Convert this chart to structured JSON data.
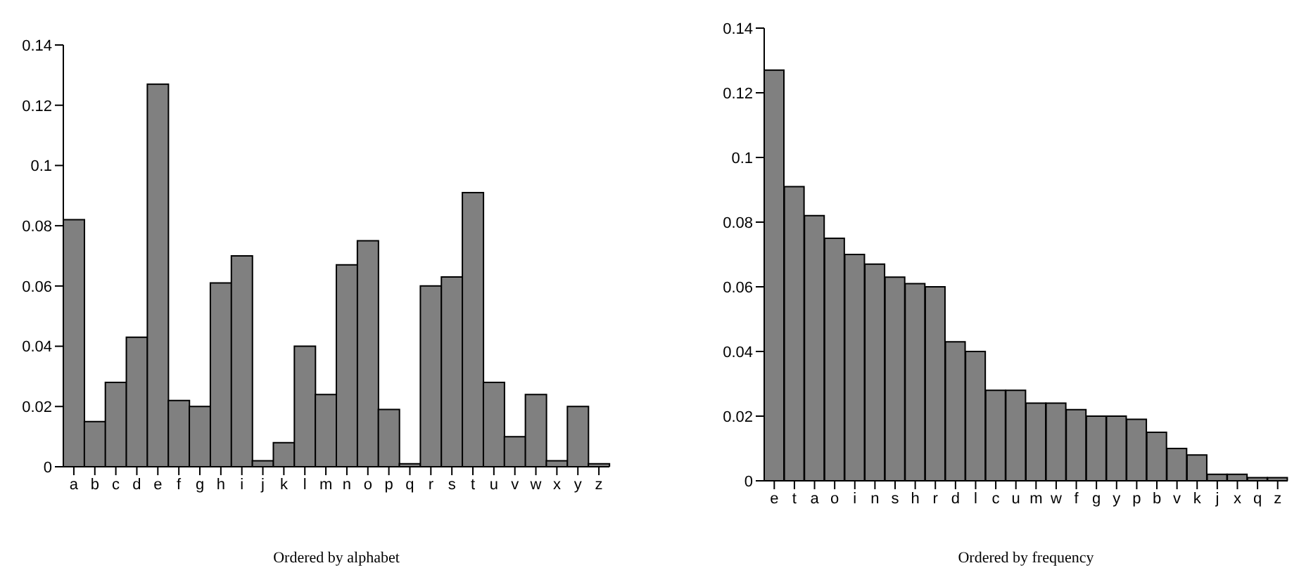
{
  "chart_data": [
    {
      "type": "bar",
      "xlabel": "Ordered by alphabet",
      "categories": [
        "a",
        "b",
        "c",
        "d",
        "e",
        "f",
        "g",
        "h",
        "i",
        "j",
        "k",
        "l",
        "m",
        "n",
        "o",
        "p",
        "q",
        "r",
        "s",
        "t",
        "u",
        "v",
        "w",
        "x",
        "y",
        "z"
      ],
      "values": [
        0.082,
        0.015,
        0.028,
        0.043,
        0.127,
        0.022,
        0.02,
        0.061,
        0.07,
        0.002,
        0.008,
        0.04,
        0.024,
        0.067,
        0.075,
        0.019,
        0.001,
        0.06,
        0.063,
        0.091,
        0.028,
        0.01,
        0.024,
        0.002,
        0.02,
        0.001
      ],
      "color": "#808080",
      "ylim": [
        0,
        0.14
      ],
      "yticks": [
        0,
        0.02,
        0.04,
        0.06,
        0.08,
        0.1,
        0.12,
        0.14
      ],
      "grid": false,
      "legend": false
    },
    {
      "type": "bar",
      "xlabel": "Ordered by frequency",
      "categories": [
        "e",
        "t",
        "a",
        "o",
        "i",
        "n",
        "s",
        "h",
        "r",
        "d",
        "l",
        "c",
        "u",
        "m",
        "w",
        "f",
        "g",
        "y",
        "p",
        "b",
        "v",
        "k",
        "j",
        "x",
        "q",
        "z"
      ],
      "values": [
        0.127,
        0.091,
        0.082,
        0.075,
        0.07,
        0.067,
        0.063,
        0.061,
        0.06,
        0.043,
        0.04,
        0.028,
        0.028,
        0.024,
        0.024,
        0.022,
        0.02,
        0.02,
        0.019,
        0.015,
        0.01,
        0.008,
        0.002,
        0.002,
        0.001,
        0.001
      ],
      "color": "#808080",
      "ylim": [
        0,
        0.14
      ],
      "yticks": [
        0,
        0.02,
        0.04,
        0.06,
        0.08,
        0.1,
        0.12,
        0.14
      ],
      "grid": false,
      "legend": false
    }
  ]
}
